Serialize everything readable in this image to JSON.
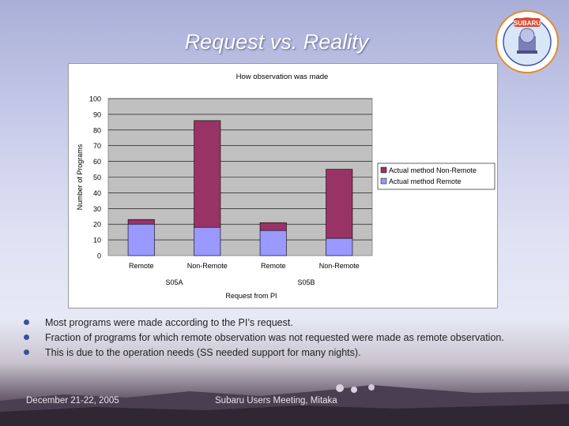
{
  "slide": {
    "title": "Request vs. Reality",
    "footer_date": "December 21-22, 2005",
    "footer_event": "Subaru Users Meeting, Mitaka"
  },
  "logo": {
    "text": "SUBARU"
  },
  "bullets": [
    "Most programs were made according to the PI’s request.",
    "Fraction of programs for which remote observation was not requested were made as remote observation.",
    "This is due to the operation needs (SS needed support for many nights)."
  ],
  "chart_data": {
    "type": "bar",
    "stacked": true,
    "title": "How observation was made",
    "xlabel": "Request from PI",
    "ylabel": "Number of Programs",
    "ylim": [
      0,
      100
    ],
    "yticks": [
      0,
      10,
      20,
      30,
      40,
      50,
      60,
      70,
      80,
      90,
      100
    ],
    "categories": [
      "Remote",
      "Non-Remote",
      "Remote",
      "Non-Remote"
    ],
    "groups": [
      {
        "label": "S05A",
        "categories": [
          0,
          1
        ]
      },
      {
        "label": "S05B",
        "categories": [
          2,
          3
        ]
      }
    ],
    "series": [
      {
        "name": "Actual method Remote",
        "values": [
          20,
          18,
          16,
          11
        ],
        "color": "#9999ff"
      },
      {
        "name": "Actual method Non-Remote",
        "values": [
          3,
          68,
          5,
          44
        ],
        "color": "#993366"
      }
    ],
    "legend_position": "right",
    "grid": true,
    "plot_background": "#c0c0c0"
  }
}
